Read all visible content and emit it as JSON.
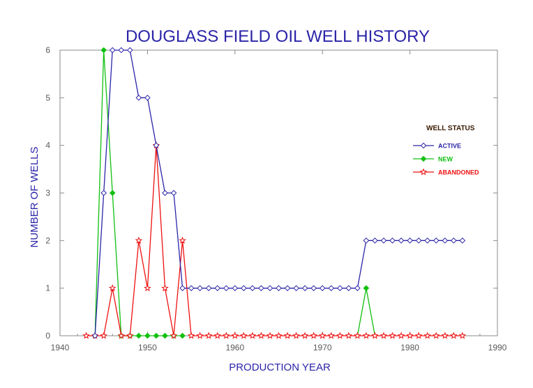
{
  "chart_data": {
    "type": "line",
    "title": "DOUGLASS FIELD OIL WELL HISTORY",
    "xlabel": "PRODUCTION YEAR",
    "ylabel": "NUMBER OF WELLS",
    "xlim": [
      1940,
      1990
    ],
    "ylim": [
      0,
      6
    ],
    "x_ticks": [
      "1940",
      "1950",
      "1960",
      "1970",
      "1980",
      "1990"
    ],
    "y_ticks": [
      "0",
      "1",
      "2",
      "3",
      "4",
      "5",
      "6"
    ],
    "grid": false,
    "legend_title": "WELL STATUS",
    "legend_position": "right",
    "series": [
      {
        "name": "ACTIVE",
        "color": "#2b24a8",
        "marker": "diamond-open",
        "x": [
          1944,
          1945,
          1946,
          1947,
          1948,
          1949,
          1950,
          1951,
          1952,
          1953,
          1954,
          1955,
          1956,
          1957,
          1958,
          1959,
          1960,
          1961,
          1962,
          1963,
          1964,
          1965,
          1966,
          1967,
          1968,
          1969,
          1970,
          1971,
          1972,
          1973,
          1974,
          1975,
          1976,
          1977,
          1978,
          1979,
          1980,
          1981,
          1982,
          1983,
          1984,
          1985,
          1986
        ],
        "values": [
          0,
          3,
          6,
          6,
          6,
          5,
          5,
          4,
          3,
          3,
          1,
          1,
          1,
          1,
          1,
          1,
          1,
          1,
          1,
          1,
          1,
          1,
          1,
          1,
          1,
          1,
          1,
          1,
          1,
          1,
          1,
          2,
          2,
          2,
          2,
          2,
          2,
          2,
          2,
          2,
          2,
          2,
          2
        ]
      },
      {
        "name": "NEW",
        "color": "#10c010",
        "marker": "diamond-filled",
        "x": [
          1944,
          1945,
          1946,
          1947,
          1948,
          1949,
          1950,
          1951,
          1952,
          1953,
          1954,
          1975
        ],
        "values": [
          0,
          6,
          3,
          0,
          0,
          0,
          0,
          0,
          0,
          0,
          0,
          1
        ]
      },
      {
        "name": "ABANDONED",
        "color": "#ee1010",
        "marker": "star-open",
        "x": [
          1943,
          1944,
          1945,
          1946,
          1947,
          1948,
          1949,
          1950,
          1951,
          1952,
          1953,
          1954,
          1955,
          1956,
          1957,
          1958,
          1959,
          1960,
          1961,
          1962,
          1963,
          1964,
          1965,
          1966,
          1967,
          1968,
          1969,
          1970,
          1971,
          1972,
          1973,
          1974,
          1975,
          1976,
          1977,
          1978,
          1979,
          1980,
          1981,
          1982,
          1983,
          1984,
          1985,
          1986
        ],
        "values": [
          0,
          0,
          0,
          1,
          0,
          0,
          2,
          1,
          4,
          1,
          0,
          2,
          0,
          0,
          0,
          0,
          0,
          0,
          0,
          0,
          0,
          0,
          0,
          0,
          0,
          0,
          0,
          0,
          0,
          0,
          0,
          0,
          0,
          0,
          0,
          0,
          0,
          0,
          0,
          0,
          0,
          0,
          0,
          0
        ]
      }
    ],
    "new_series_extra_segments": [
      [
        1974,
        1975,
        1976
      ]
    ]
  }
}
